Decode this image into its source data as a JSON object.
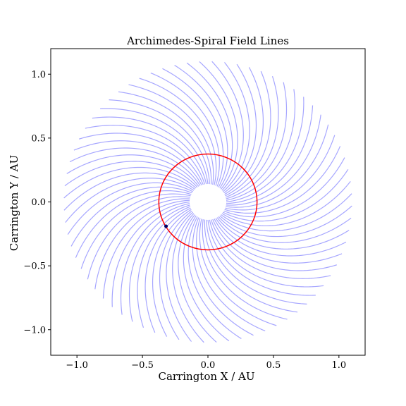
{
  "chart_data": {
    "type": "line",
    "title": "Archimedes-Spiral Field Lines",
    "xlabel": "Carrington X / AU",
    "ylabel": "Carrington Y / AU",
    "xlim": [
      -1.2,
      1.2
    ],
    "ylim": [
      -1.2,
      1.2
    ],
    "xticks": [
      -1.0,
      -0.5,
      0.0,
      0.5,
      1.0
    ],
    "yticks": [
      -1.0,
      -0.5,
      0.0,
      0.5,
      1.0
    ],
    "xtick_labels": [
      "−1.0",
      "−0.5",
      "0.0",
      "0.5",
      "1.0"
    ],
    "ytick_labels": [
      "−1.0",
      "−0.5",
      "0.0",
      "0.5",
      "1.0"
    ],
    "grid": false,
    "field_lines": {
      "count": 72,
      "inner_radius_au": 0.14,
      "outer_radius_au": 1.1,
      "sweep_rad_per_au": 0.88,
      "color": "#0000ff"
    },
    "orbit_circle": {
      "radius_au": 0.375,
      "color": "#ff0000"
    },
    "marker": {
      "x": -0.32,
      "y": -0.19,
      "color": "#000066"
    }
  }
}
